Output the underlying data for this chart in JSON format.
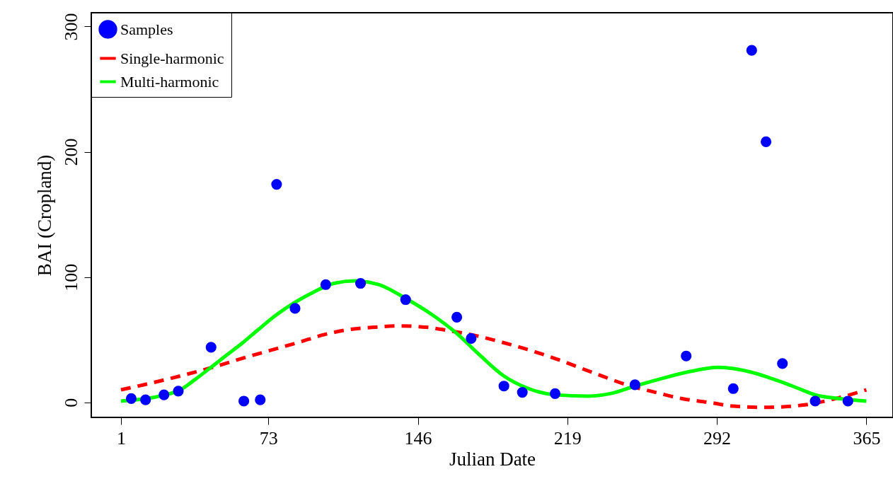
{
  "chart_data": {
    "type": "scatter",
    "xlabel": "Julian Date",
    "ylabel": "BAI (Cropland)",
    "xlim": [
      -13.5,
      378
    ],
    "ylim": [
      -12,
      311
    ],
    "xticks": [
      1,
      73,
      146,
      219,
      292,
      365
    ],
    "yticks": [
      0,
      100,
      200,
      300
    ],
    "grid": false,
    "legend": "top left",
    "series": [
      {
        "name": "Samples",
        "marker": "circle",
        "color": "#0000ff",
        "x": [
          6,
          13,
          22,
          29,
          45,
          61,
          69,
          77,
          86,
          101,
          118,
          140,
          165,
          172,
          188,
          197,
          213,
          252,
          277,
          300,
          309,
          316,
          324,
          340,
          356
        ],
        "values": [
          3,
          2,
          6,
          9,
          44,
          1,
          2,
          174,
          75,
          94,
          95,
          82,
          68,
          51,
          13,
          8,
          7,
          14,
          37,
          11,
          281,
          208,
          31,
          1,
          1
        ]
      },
      {
        "name": "Single-harmonic",
        "type": "line",
        "marker": "none",
        "line_style": "dashed",
        "color": "#ff0000",
        "x": [
          1,
          12,
          25,
          50,
          62,
          75,
          88,
          100,
          112,
          125,
          137,
          150,
          162,
          175,
          187,
          200,
          213,
          231,
          250,
          262,
          275,
          288,
          300,
          315,
          335,
          350,
          365
        ],
        "values": [
          10,
          14,
          19,
          30,
          36,
          42,
          48,
          54,
          58,
          60,
          61,
          60,
          57,
          53,
          48,
          42,
          35,
          24,
          13,
          8,
          3,
          0,
          -3,
          -4,
          -2,
          3,
          10
        ]
      },
      {
        "name": "Multi-harmonic",
        "type": "line",
        "marker": "none",
        "line_style": "solid",
        "color": "#00ff00",
        "x": [
          1,
          20,
          30,
          37,
          45,
          52,
          60,
          68,
          77,
          95,
          105,
          115,
          127,
          140,
          152,
          165,
          176,
          188,
          200,
          213,
          229,
          240,
          252,
          265,
          277,
          293,
          309,
          317,
          324,
          332,
          340,
          352,
          365
        ],
        "values": [
          1,
          5,
          10,
          18,
          28,
          37,
          47,
          58,
          70,
          88,
          95,
          97,
          94,
          83,
          71,
          55,
          38,
          21,
          11,
          6,
          5,
          7,
          13,
          19,
          24,
          28,
          24,
          20,
          16,
          11,
          6,
          3,
          1
        ]
      }
    ]
  }
}
